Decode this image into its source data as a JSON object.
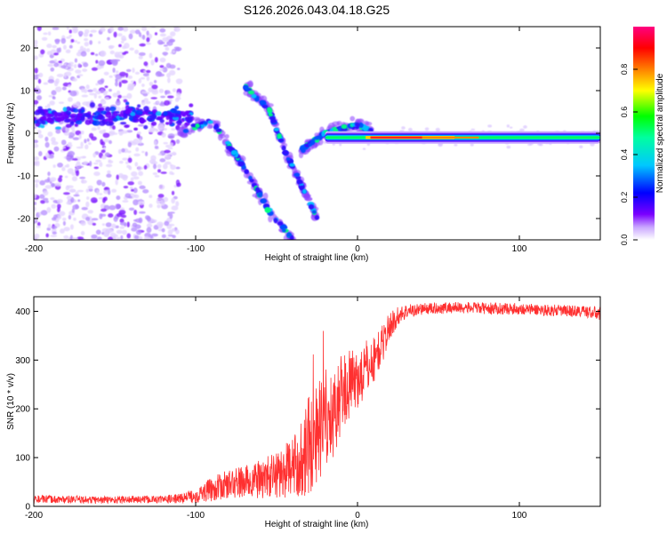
{
  "title": "S126.2026.043.04.18.G25",
  "chart_data": [
    {
      "type": "heatmap",
      "xlabel": "Height of straight line (km)",
      "ylabel": "Frequency (Hz)",
      "xlim": [
        -200,
        150
      ],
      "ylim": [
        -25,
        25
      ],
      "xticks": [
        -200,
        -100,
        0,
        100
      ],
      "yticks": [
        -20,
        -10,
        0,
        10,
        20
      ],
      "colorbar": {
        "label": "Normalized spectral amplitude",
        "range": [
          0,
          1
        ],
        "ticks": [
          "0.0",
          "0.2",
          "0.4",
          "0.6",
          "0.8"
        ],
        "tick_values": [
          0.0,
          0.2,
          0.4,
          0.6,
          0.8
        ],
        "colormap": [
          "#ffffff",
          "#7a00ff",
          "#0000ff",
          "#00e0ff",
          "#00ff00",
          "#ffff00",
          "#ff8000",
          "#ff0000",
          "#ff0080"
        ]
      },
      "features": {
        "noise_region_x": [
          -200,
          -110
        ],
        "noise_band_center_hz": 4,
        "carrier_line_x": [
          -20,
          150
        ],
        "carrier_line_freq_hz": -1,
        "branch_1": [
          [
            -110,
            0
          ],
          [
            -90,
            3
          ],
          [
            -70,
            -8
          ],
          [
            -55,
            -18
          ],
          [
            -40,
            -25
          ]
        ],
        "branch_2": [
          [
            -70,
            11
          ],
          [
            -55,
            6
          ],
          [
            -45,
            -4
          ],
          [
            -35,
            -12
          ],
          [
            -25,
            -20
          ]
        ],
        "branch_3": [
          [
            -35,
            -4
          ],
          [
            -20,
            0
          ],
          [
            -10,
            1
          ],
          [
            0,
            2
          ],
          [
            10,
            0
          ]
        ]
      }
    },
    {
      "type": "line",
      "xlabel": "Height of straight line (km)",
      "ylabel": "SNR (10 * v/v)",
      "xlim": [
        -200,
        150
      ],
      "ylim": [
        0,
        430
      ],
      "xticks": [
        -200,
        -100,
        0,
        100
      ],
      "yticks": [
        0,
        100,
        200,
        300,
        400
      ],
      "color": "#ff3030",
      "series": [
        {
          "name": "SNR",
          "x": [
            -200,
            -180,
            -160,
            -140,
            -120,
            -110,
            -100,
            -90,
            -80,
            -70,
            -60,
            -50,
            -40,
            -35,
            -30,
            -28,
            -25,
            -20,
            -15,
            -10,
            -5,
            0,
            5,
            10,
            15,
            20,
            25,
            30,
            40,
            60,
            80,
            100,
            120,
            140,
            150
          ],
          "y": [
            15,
            14,
            13,
            14,
            14,
            16,
            22,
            35,
            45,
            50,
            55,
            65,
            80,
            100,
            140,
            120,
            160,
            160,
            190,
            230,
            250,
            260,
            280,
            300,
            330,
            370,
            390,
            400,
            405,
            408,
            406,
            405,
            402,
            400,
            395
          ],
          "noise": [
            8,
            8,
            8,
            8,
            8,
            10,
            15,
            25,
            30,
            35,
            40,
            50,
            60,
            80,
            120,
            100,
            110,
            90,
            90,
            80,
            70,
            60,
            60,
            50,
            40,
            30,
            20,
            15,
            12,
            12,
            12,
            12,
            12,
            12,
            15
          ]
        }
      ]
    }
  ]
}
